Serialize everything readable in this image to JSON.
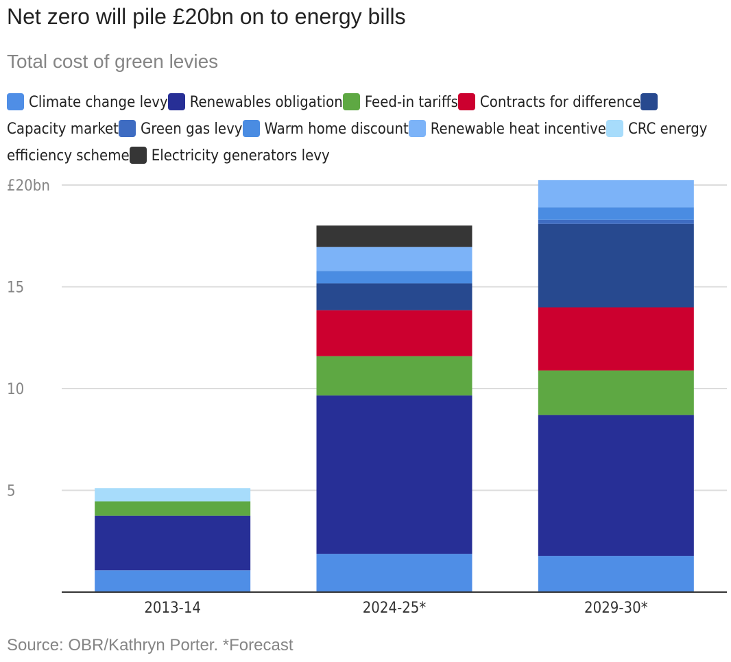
{
  "title": "Net zero will pile £20bn on to energy bills",
  "subtitle": "Total cost of green levies",
  "source": "Source: OBR/Kathryn Porter. *Forecast",
  "chart_data": {
    "type": "bar",
    "stacked": true,
    "title": "Net zero will pile £20bn on to energy bills",
    "subtitle": "Total cost of green levies",
    "xlabel": "",
    "ylabel": "",
    "ylim": [
      0,
      20
    ],
    "yticks": [
      5,
      10,
      15,
      20
    ],
    "ytick_labels": [
      "5",
      "10",
      "15",
      "£20bn"
    ],
    "grid": true,
    "legend_position": "top",
    "categories": [
      "2013-14",
      "2024-25*",
      "2029-30*"
    ],
    "series": [
      {
        "name": "Climate change levy",
        "color": "#4f8ee6",
        "values": [
          1.07,
          1.88,
          1.78
        ]
      },
      {
        "name": "Renewables obligation",
        "color": "#272f96",
        "values": [
          2.68,
          7.78,
          6.92
        ]
      },
      {
        "name": "Feed-in tariffs",
        "color": "#5ea843",
        "values": [
          0.71,
          1.93,
          2.19
        ]
      },
      {
        "name": "Contracts for difference",
        "color": "#cc002f",
        "values": [
          0,
          2.26,
          3.1
        ]
      },
      {
        "name": "Capacity market",
        "color": "#27498f",
        "values": [
          0,
          1.32,
          4.1
        ]
      },
      {
        "name": "Green gas levy",
        "color": "#3e6cc2",
        "values": [
          0,
          0,
          0.2
        ]
      },
      {
        "name": "Warm home discount",
        "color": "#4a8ce2",
        "values": [
          0,
          0.61,
          0.62
        ]
      },
      {
        "name": "Renewable heat incentive",
        "color": "#7cb3f8",
        "values": [
          0,
          1.18,
          1.33
        ]
      },
      {
        "name": "CRC energy efficiency scheme",
        "color": "#a7dcfb",
        "values": [
          0.65,
          0,
          0
        ]
      },
      {
        "name": "Electricity generators levy",
        "color": "#363636",
        "values": [
          0,
          1.05,
          0
        ]
      }
    ]
  }
}
